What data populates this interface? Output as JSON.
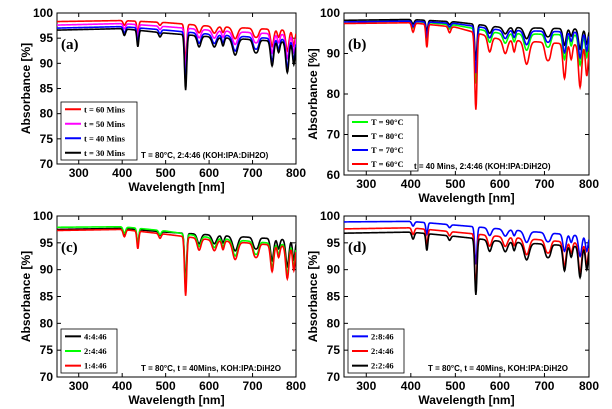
{
  "chart_data": [
    {
      "type": "line",
      "panel_label": "(a)",
      "xlabel": "Wavelength [nm]",
      "ylabel": "Absorbance [%]",
      "xlim": [
        250,
        800
      ],
      "ylim": [
        70,
        100
      ],
      "xticks": [
        300,
        400,
        500,
        600,
        700,
        800
      ],
      "yticks": [
        70,
        75,
        80,
        85,
        90,
        95,
        100
      ],
      "legend_position": "bottom-left",
      "annotation": "T = 80°C, 2:4:46 (KOH:IPA:DiH2O)",
      "series": [
        {
          "name": "t = 60 Mins",
          "color": "#ff0000",
          "baseline": [
            [
              250,
              98.3
            ],
            [
              400,
              98.5
            ],
            [
              500,
              98.1
            ],
            [
              600,
              97.4
            ],
            [
              800,
              96.5
            ]
          ],
          "dip_scale": 0.75
        },
        {
          "name": "t = 50 Mins",
          "color": "#ff00ff",
          "baseline": [
            [
              250,
              97.6
            ],
            [
              400,
              97.9
            ],
            [
              500,
              97.3
            ],
            [
              600,
              96.6
            ],
            [
              800,
              95.6
            ]
          ],
          "dip_scale": 0.85
        },
        {
          "name": "t = 40 Mins",
          "color": "#0000ff",
          "baseline": [
            [
              250,
              97.0
            ],
            [
              400,
              97.3
            ],
            [
              500,
              96.6
            ],
            [
              600,
              95.8
            ],
            [
              800,
              94.6
            ]
          ],
          "dip_scale": 1.0
        },
        {
          "name": "t = 30 Mins",
          "color": "#000000",
          "baseline": [
            [
              250,
              96.6
            ],
            [
              400,
              96.9
            ],
            [
              500,
              96.0
            ],
            [
              600,
              95.3
            ],
            [
              800,
              94.1
            ]
          ],
          "dip_scale": 1.1
        }
      ]
    },
    {
      "type": "line",
      "panel_label": "(b)",
      "xlabel": "Wavelength [nm]",
      "ylabel": "Absorbance [%]",
      "xlim": [
        250,
        800
      ],
      "ylim": [
        60,
        100
      ],
      "xticks": [
        300,
        400,
        500,
        600,
        700,
        800
      ],
      "yticks": [
        60,
        70,
        80,
        90,
        100
      ],
      "legend_position": "bottom-left",
      "annotation": "t = 40 Mins, 2:4:46 (KOH:IPA:DiH2O)",
      "series": [
        {
          "name": "T = 90°C",
          "color": "#00ff00",
          "baseline": [
            [
              250,
              97.8
            ],
            [
              400,
              98.0
            ],
            [
              500,
              97.0
            ],
            [
              600,
              95.0
            ],
            [
              800,
              94.5
            ]
          ],
          "dip_scale": 1.35
        },
        {
          "name": "T = 80°C",
          "color": "#000000",
          "baseline": [
            [
              250,
              98.2
            ],
            [
              400,
              98.4
            ],
            [
              500,
              97.8
            ],
            [
              600,
              96.5
            ],
            [
              800,
              96.0
            ]
          ],
          "dip_scale": 0.9
        },
        {
          "name": "T = 70°C",
          "color": "#0000ff",
          "baseline": [
            [
              250,
              97.8
            ],
            [
              400,
              98.0
            ],
            [
              500,
              97.4
            ],
            [
              600,
              95.8
            ],
            [
              800,
              95.2
            ]
          ],
          "dip_scale": 1.15
        },
        {
          "name": "T = 60°C",
          "color": "#ff0000",
          "baseline": [
            [
              250,
              97.4
            ],
            [
              400,
              97.6
            ],
            [
              500,
              96.5
            ],
            [
              600,
              93.5
            ],
            [
              800,
              92.0
            ]
          ],
          "dip_scale": 1.9
        }
      ]
    },
    {
      "type": "line",
      "panel_label": "(c)",
      "xlabel": "Wavelength [nm]",
      "ylabel": "Absorbance [%]",
      "xlim": [
        250,
        800
      ],
      "ylim": [
        70,
        100
      ],
      "xticks": [
        300,
        400,
        500,
        600,
        700,
        800
      ],
      "yticks": [
        70,
        75,
        80,
        85,
        90,
        95,
        100
      ],
      "legend_position": "bottom-left",
      "annotation": "T = 80°C, t = 40Mins, KOH:IPA:DiH2O",
      "series": [
        {
          "name": "4:4:46",
          "color": "#000000",
          "baseline": [
            [
              250,
              97.5
            ],
            [
              400,
              97.7
            ],
            [
              500,
              97.0
            ],
            [
              600,
              96.5
            ],
            [
              800,
              95.5
            ]
          ],
          "dip_scale": 0.9
        },
        {
          "name": "2:4:46",
          "color": "#00ff00",
          "baseline": [
            [
              250,
              97.9
            ],
            [
              400,
              98.0
            ],
            [
              500,
              97.2
            ],
            [
              600,
              96.0
            ],
            [
              800,
              94.5
            ]
          ],
          "dip_scale": 1.0
        },
        {
          "name": "1:4:46",
          "color": "#ff0000",
          "baseline": [
            [
              250,
              97.3
            ],
            [
              400,
              97.5
            ],
            [
              500,
              96.6
            ],
            [
              600,
              95.6
            ],
            [
              800,
              94.2
            ]
          ],
          "dip_scale": 1.1
        }
      ]
    },
    {
      "type": "line",
      "panel_label": "(d)",
      "xlabel": "Wavelength [nm]",
      "ylabel": "Absorbance [%]",
      "xlim": [
        250,
        800
      ],
      "ylim": [
        70,
        100
      ],
      "xticks": [
        300,
        400,
        500,
        600,
        700,
        800
      ],
      "yticks": [
        70,
        75,
        80,
        85,
        90,
        95,
        100
      ],
      "legend_position": "bottom-left",
      "annotation": "T = 80°C, t = 40Mins, KOH:IPA:DiH2O",
      "series": [
        {
          "name": "2:8:46",
          "color": "#0000ff",
          "baseline": [
            [
              250,
              98.9
            ],
            [
              400,
              99.0
            ],
            [
              500,
              98.3
            ],
            [
              600,
              97.6
            ],
            [
              800,
              96.2
            ]
          ],
          "dip_scale": 0.7
        },
        {
          "name": "2:4:46",
          "color": "#ff0000",
          "baseline": [
            [
              250,
              97.6
            ],
            [
              400,
              97.8
            ],
            [
              500,
              97.0
            ],
            [
              600,
              96.2
            ],
            [
              800,
              94.8
            ]
          ],
          "dip_scale": 1.0
        },
        {
          "name": "2:2:46",
          "color": "#000000",
          "baseline": [
            [
              250,
              96.8
            ],
            [
              400,
              97.0
            ],
            [
              500,
              96.2
            ],
            [
              600,
              95.3
            ],
            [
              800,
              94.2
            ]
          ],
          "dip_scale": 1.05
        }
      ]
    }
  ],
  "spectral_dips": [
    {
      "center": 405,
      "width": 4,
      "depth": 1.2
    },
    {
      "center": 436,
      "width": 3,
      "depth": 3.0
    },
    {
      "center": 487,
      "width": 4,
      "depth": 0.8
    },
    {
      "center": 546,
      "width": 3.5,
      "depth": 10.0
    },
    {
      "center": 577,
      "width": 6,
      "depth": 2.0
    },
    {
      "center": 612,
      "width": 7,
      "depth": 1.8
    },
    {
      "center": 632,
      "width": 4,
      "depth": 1.5
    },
    {
      "center": 660,
      "width": 8,
      "depth": 3.0
    },
    {
      "center": 705,
      "width": 6,
      "depth": 2.0
    },
    {
      "center": 712,
      "width": 5,
      "depth": 1.5
    },
    {
      "center": 745,
      "width": 5,
      "depth": 4.5
    },
    {
      "center": 760,
      "width": 4,
      "depth": 2.0
    },
    {
      "center": 780,
      "width": 5,
      "depth": 5.5
    },
    {
      "center": 795,
      "width": 4,
      "depth": 4.0
    }
  ]
}
